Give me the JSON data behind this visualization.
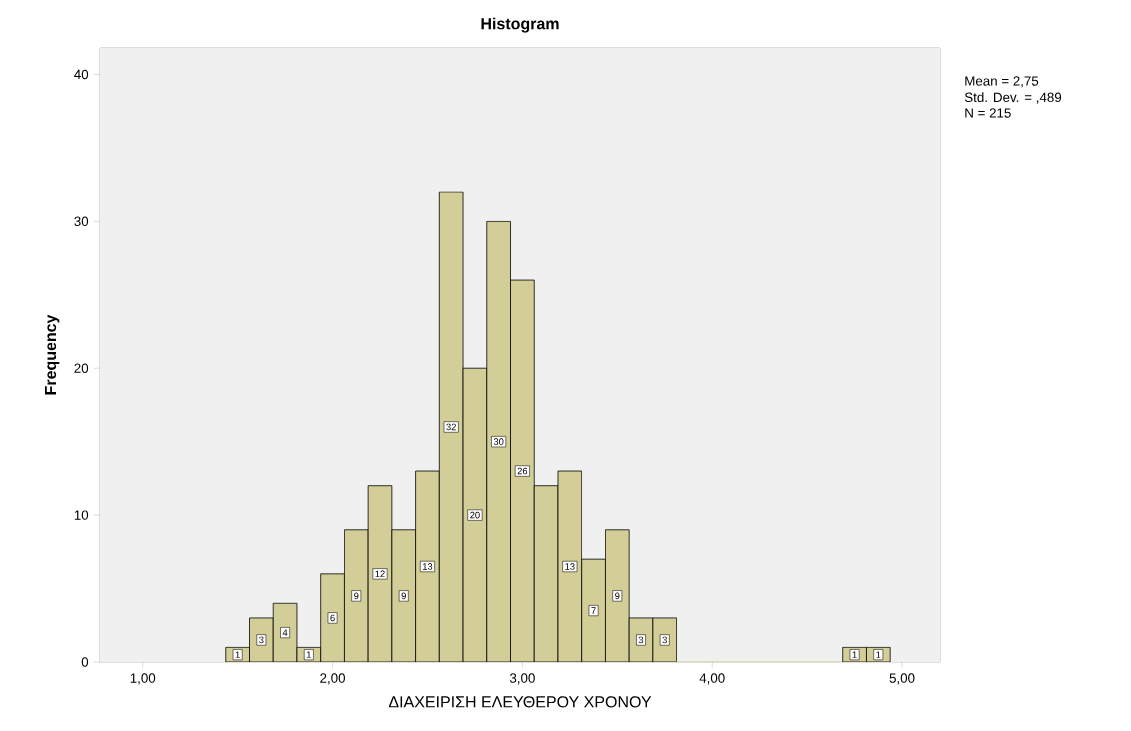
{
  "chart_data": {
    "type": "histogram",
    "title": "Histogram",
    "xlabel": "ΔΙΑΧΕΙΡΙΣΗ ΕΛΕΥΘΕΡΟΥ ΧΡΟΝΟΥ",
    "ylabel": "Frequency",
    "bins": [
      1.4375,
      1.5625,
      1.6875,
      1.8125,
      1.9375,
      2.0625,
      2.1875,
      2.3125,
      2.4375,
      2.5625,
      2.6875,
      2.8125,
      2.9375,
      3.0625,
      3.1875,
      3.3125,
      3.4375,
      3.5625,
      3.6875,
      3.8125,
      3.9375,
      4.0625,
      4.1875,
      4.3125,
      4.4375,
      4.5625,
      4.6875,
      4.8125,
      4.9375
    ],
    "values": [
      1,
      3,
      4,
      1,
      6,
      9,
      12,
      9,
      13,
      32,
      20,
      30,
      26,
      12,
      13,
      7,
      9,
      3,
      3,
      0,
      0,
      0,
      0,
      0,
      0,
      0,
      1,
      1
    ],
    "value_labels": [
      "1",
      "3",
      "4",
      "1",
      "6",
      "9",
      "12",
      "9",
      "13",
      "32",
      "20",
      "30",
      "26",
      null,
      "13",
      "7",
      "9",
      "3",
      "3",
      null,
      null,
      null,
      null,
      null,
      null,
      null,
      "1",
      "1"
    ],
    "color": "#d3ce97",
    "xlim": [
      0.775,
      5.2
    ],
    "ylim": [
      0,
      41.8
    ],
    "xticks": [
      {
        "value": 1,
        "label": "1,00"
      },
      {
        "value": 2,
        "label": "2,00"
      },
      {
        "value": 3,
        "label": "3,00"
      },
      {
        "value": 4,
        "label": "4,00"
      },
      {
        "value": 5,
        "label": "5,00"
      }
    ],
    "yticks": [
      0,
      10,
      20,
      30,
      40
    ],
    "annotations": [
      "Mean = 2,75",
      "Std. Dev. = ,489",
      "N = 215"
    ]
  }
}
